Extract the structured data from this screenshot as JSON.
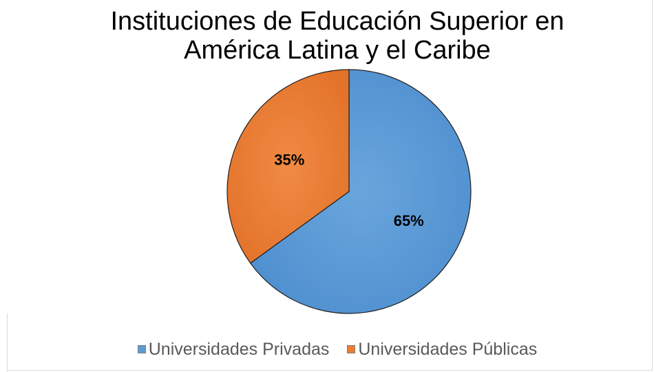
{
  "chart_data": {
    "type": "pie",
    "title": "Instituciones de Educación Superior en América Latina y el Caribe",
    "title_lines": [
      "Instituciones de Educación Superior en",
      "América Latina y el Caribe"
    ],
    "categories": [
      "Universidades Privadas",
      "Universidades Públicas"
    ],
    "values": [
      65,
      35
    ],
    "data_labels": [
      "65%",
      "35%"
    ],
    "colors": [
      "#5b9bd5",
      "#ed7d31"
    ],
    "legend_position": "bottom"
  }
}
